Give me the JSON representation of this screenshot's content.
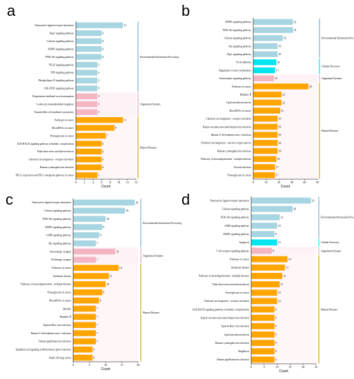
{
  "colors": {
    "env": "#a8d5e2",
    "cell": "#00e5ee",
    "org": "#f4b6c2",
    "dis": "#ffa500",
    "env_line": "#7fb2d6",
    "cell_line": "#00e5ee",
    "org_line": "#e8a6b8",
    "dis_line": "#d4a800"
  },
  "chart_data": [
    {
      "label": "a",
      "type": "bar",
      "orientation": "horizontal",
      "xlabel": "Count",
      "xlim": [
        0,
        14
      ],
      "xticks": [
        "0",
        "2",
        "4",
        "6",
        "8",
        "10",
        "12",
        "14"
      ],
      "series": [
        {
          "category": "Neuroactive ligand-receptor interaction",
          "value": 11,
          "group": "env"
        },
        {
          "category": "Rap1 signaling pathway",
          "value": 6,
          "group": "env"
        },
        {
          "category": "Calcium signaling pathway",
          "value": 6,
          "group": "env"
        },
        {
          "category": "MAPK signaling pathway",
          "value": 6,
          "group": "env"
        },
        {
          "category": "PI3K-Akt signaling pathway",
          "value": 6,
          "group": "env"
        },
        {
          "category": "VEGF signaling pathway",
          "value": 5,
          "group": "env"
        },
        {
          "category": "TNF signaling pathway",
          "value": 5,
          "group": "env"
        },
        {
          "category": "Phospholipase D signaling pathway",
          "value": 5,
          "group": "env"
        },
        {
          "category": "JAK-STAT signaling pathway",
          "value": 5,
          "group": "env"
        },
        {
          "category": "Progesterone-mediated oocyte maturation",
          "value": 5,
          "group": "org"
        },
        {
          "category": "Leukocyte transendothelial migration",
          "value": 5,
          "group": "org"
        },
        {
          "category": "Natural killer cell mediated cytotoxicity",
          "value": 5,
          "group": "org"
        },
        {
          "category": "Pathways in cancer",
          "value": 11,
          "group": "dis"
        },
        {
          "category": "MicroRNAs in cancer",
          "value": 9,
          "group": "dis"
        },
        {
          "category": "Proteoglycans in cancer",
          "value": 7,
          "group": "dis"
        },
        {
          "category": "AGE-RAGE signaling pathway in diabetic complications",
          "value": 6,
          "group": "dis"
        },
        {
          "category": "Fluid shear stress and atherosclerosis",
          "value": 6,
          "group": "dis"
        },
        {
          "category": "Chemical carcinogenesis - receptor activation",
          "value": 6,
          "group": "dis"
        },
        {
          "category": "Human cytomegalovirus infection",
          "value": 6,
          "group": "dis"
        },
        {
          "category": "PD-L1 expression and PD-1 checkpoint pathway in cancer",
          "value": 5,
          "group": "dis"
        }
      ],
      "groups": [
        {
          "group": "env",
          "name": "Environmental Information Processing"
        },
        {
          "group": "org",
          "name": "Organismal Systems"
        },
        {
          "group": "dis",
          "name": "Human Diseases"
        }
      ]
    },
    {
      "label": "b",
      "type": "bar",
      "orientation": "horizontal",
      "xlabel": "Count",
      "xlim": [
        0,
        50
      ],
      "xticks": [
        "0",
        "10",
        "20",
        "30",
        "40",
        "50"
      ],
      "series": [
        {
          "category": "MAPK signaling pathway",
          "value": 31,
          "group": "env"
        },
        {
          "category": "PI3K-Akt signaling pathway",
          "value": 31,
          "group": "env"
        },
        {
          "category": "Calcium signaling pathway",
          "value": 23,
          "group": "env"
        },
        {
          "category": "Ras signaling pathway",
          "value": 19,
          "group": "env"
        },
        {
          "category": "Rap1 signaling pathway",
          "value": 19,
          "group": "env"
        },
        {
          "category": "Focal adhesion",
          "value": 18,
          "group": "cell"
        },
        {
          "category": "Regulation of actin cytoskeleton",
          "value": 17,
          "group": "cell"
        },
        {
          "category": "Neurotrophin signaling pathway",
          "value": 16,
          "group": "org"
        },
        {
          "category": "Pathways in cancer",
          "value": 43,
          "group": "dis"
        },
        {
          "category": "Hepatitis B",
          "value": 22,
          "group": "dis"
        },
        {
          "category": "Lipid and atherosclerosis",
          "value": 22,
          "group": "dis"
        },
        {
          "category": "MicroRNAs in cancer",
          "value": 21,
          "group": "dis"
        },
        {
          "category": "Chemical carcinogenesis - receptor activation",
          "value": 19,
          "group": "dis"
        },
        {
          "category": "Kaposi sarcoma-associated herpesvirus infection",
          "value": 19,
          "group": "dis"
        },
        {
          "category": "Human T-cell leukemia virus 1 infection",
          "value": 19,
          "group": "dis"
        },
        {
          "category": "Chemical carcinogenesis - reactive oxygen species",
          "value": 19,
          "group": "dis"
        },
        {
          "category": "Human cytomegalovirus infection",
          "value": 19,
          "group": "dis"
        },
        {
          "category": "Pathways of neurodegeneration - multiple diseases",
          "value": 18,
          "group": "dis"
        },
        {
          "category": "Yersinia infection",
          "value": 17,
          "group": "dis"
        },
        {
          "category": "Proteoglycans in cancer",
          "value": 17,
          "group": "dis"
        }
      ],
      "groups": [
        {
          "group": "env",
          "name": "Environmental Information Processing"
        },
        {
          "group": "cell",
          "name": "Cellular Processes"
        },
        {
          "group": "org",
          "name": "Organismal Systems"
        },
        {
          "group": "dis",
          "name": "Human Diseases"
        }
      ]
    },
    {
      "label": "c",
      "type": "bar",
      "orientation": "horizontal",
      "xlabel": "Count",
      "xlim": [
        0,
        20
      ],
      "xticks": [
        "0",
        "5",
        "10",
        "15",
        "20"
      ],
      "series": [
        {
          "category": "Neuroactive ligand-receptor interaction",
          "value": 19,
          "group": "env"
        },
        {
          "category": "Calcium signaling pathway",
          "value": 16,
          "group": "env"
        },
        {
          "category": "PI3K-Akt signaling pathway",
          "value": 10,
          "group": "env"
        },
        {
          "category": "MAPK signaling pathway",
          "value": 9,
          "group": "env"
        },
        {
          "category": "cAMP signaling pathway",
          "value": 8,
          "group": "env"
        },
        {
          "category": "Ras signaling pathway",
          "value": 7,
          "group": "env"
        },
        {
          "category": "Serotonergic synapse",
          "value": 13,
          "group": "org"
        },
        {
          "category": "Cholinergic synapse",
          "value": 7,
          "group": "org"
        },
        {
          "category": "Pathways in cancer",
          "value": 14,
          "group": "dis"
        },
        {
          "category": "Alzheimer disease",
          "value": 11,
          "group": "dis"
        },
        {
          "category": "Pathways of neurodegeneration - multiple diseases",
          "value": 10,
          "group": "dis"
        },
        {
          "category": "Proteoglycans in cancer",
          "value": 9,
          "group": "dis"
        },
        {
          "category": "MicroRNAs in cancer",
          "value": 8,
          "group": "dis"
        },
        {
          "category": "Measles",
          "value": 7,
          "group": "dis"
        },
        {
          "category": "Hepatitis B",
          "value": 7,
          "group": "dis"
        },
        {
          "category": "Epstein-Barr virus infection",
          "value": 7,
          "group": "dis"
        },
        {
          "category": "Human T-cell leukemia virus 1 infection",
          "value": 7,
          "group": "dis"
        },
        {
          "category": "Human papillomavirus infection",
          "value": 7,
          "group": "dis"
        },
        {
          "category": "Epithelial cell signaling in Helicobacter pylori infection",
          "value": 6,
          "group": "dis"
        },
        {
          "category": "Small cell lung cancer",
          "value": 6,
          "group": "dis"
        }
      ],
      "groups": [
        {
          "group": "env",
          "name": "Environmental Information Processing"
        },
        {
          "group": "org",
          "name": "Organismal Systems"
        },
        {
          "group": "dis",
          "name": "Human Diseases"
        }
      ]
    },
    {
      "label": "d",
      "type": "bar",
      "orientation": "horizontal",
      "xlabel": "Count",
      "xlim": [
        0,
        25
      ],
      "xticks": [
        "0",
        "5",
        "10",
        "15",
        "20",
        "25"
      ],
      "series": [
        {
          "category": "Neuroactive ligand-receptor interaction",
          "value": 23,
          "group": "env"
        },
        {
          "category": "Calcium signaling pathway",
          "value": 16,
          "group": "env"
        },
        {
          "category": "PI3K-Akt signaling pathway",
          "value": 11,
          "group": "env"
        },
        {
          "category": "cAMP signaling pathway",
          "value": 10,
          "group": "env"
        },
        {
          "category": "MAPK signaling pathway",
          "value": 9,
          "group": "env"
        },
        {
          "category": "Apoptosis",
          "value": 10,
          "group": "cell"
        },
        {
          "category": "T cell receptor signaling pathway",
          "value": 8,
          "group": "org"
        },
        {
          "category": "Pathways in cancer",
          "value": 14,
          "group": "dis"
        },
        {
          "category": "Alzheimer disease",
          "value": 13,
          "group": "dis"
        },
        {
          "category": "Pathways of neurodegeneration - multiple diseases",
          "value": 12,
          "group": "dis"
        },
        {
          "category": "Fluid shear stress and atherosclerosis",
          "value": 11,
          "group": "dis"
        },
        {
          "category": "Proteoglycans in cancer",
          "value": 10,
          "group": "dis"
        },
        {
          "category": "Chemical carcinogenesis - receptor activation",
          "value": 10,
          "group": "dis"
        },
        {
          "category": "AGE-RAGE signaling pathway in diabetic complications",
          "value": 9,
          "group": "dis"
        },
        {
          "category": "Kaposi sarcoma-associated herpesvirus infection",
          "value": 9,
          "group": "dis"
        },
        {
          "category": "Epstein-Barr virus infection",
          "value": 9,
          "group": "dis"
        },
        {
          "category": "Lipid and atherosclerosis",
          "value": 9,
          "group": "dis"
        },
        {
          "category": "Human cytomegalovirus infection",
          "value": 9,
          "group": "dis"
        },
        {
          "category": "Shigellosis",
          "value": 9,
          "group": "dis"
        },
        {
          "category": "Human papillomavirus infection",
          "value": 9,
          "group": "dis"
        }
      ],
      "groups": [
        {
          "group": "env",
          "name": "Environmental Information Processing"
        },
        {
          "group": "cell",
          "name": "Cellular Processes"
        },
        {
          "group": "org",
          "name": "Organismal Systems"
        },
        {
          "group": "dis",
          "name": "Human Diseases"
        }
      ]
    }
  ]
}
